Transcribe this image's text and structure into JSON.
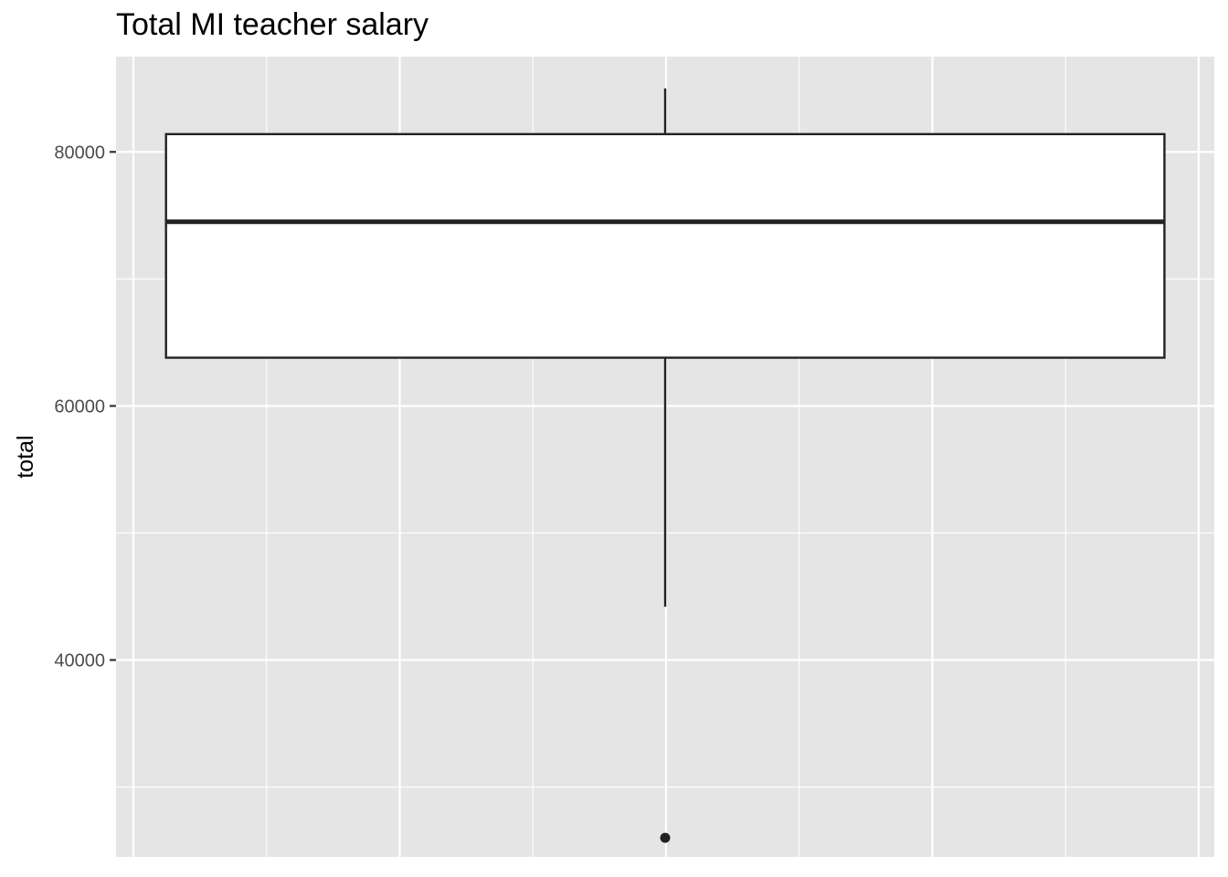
{
  "chart_data": {
    "type": "boxplot",
    "title": "Total MI teacher salary",
    "xlabel": "",
    "ylabel": "total",
    "ylim": [
      24500,
      87500
    ],
    "y_ticks": [
      40000,
      60000,
      80000
    ],
    "y_tick_labels": [
      "40000",
      "60000",
      "80000"
    ],
    "grid": true,
    "box": {
      "whisker_low": 44200,
      "q1": 63800,
      "median": 74500,
      "q3": 81400,
      "whisker_high": 85000,
      "outliers": [
        26000
      ]
    },
    "colors": {
      "panel_background": "#e5e5e5",
      "grid": "#ffffff",
      "box_fill": "#ffffff",
      "box_stroke": "#222222"
    }
  }
}
